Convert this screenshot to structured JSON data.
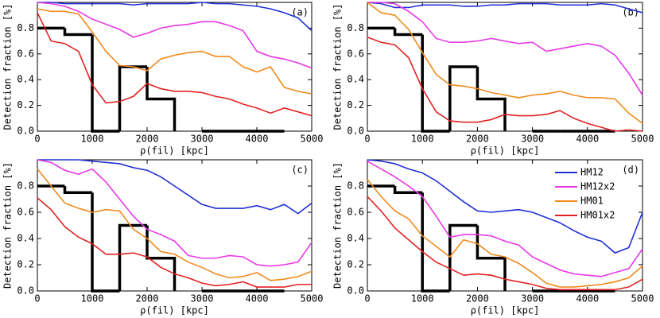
{
  "chart_data": [
    {
      "type": "line",
      "panel_label": "(a)",
      "xlabel": "ρ(fil) [kpc]",
      "ylabel": "Detection fraction [%]",
      "xlim": [
        0,
        5000
      ],
      "ylim": [
        0,
        1
      ],
      "xticks": [
        0,
        1000,
        2000,
        3000,
        4000,
        5000
      ],
      "yticks": [
        {
          "value": 0,
          "label": "0.0"
        },
        0.2,
        0.4,
        0.6,
        0.8
      ],
      "legend": false,
      "x": [
        0,
        250,
        500,
        750,
        1000,
        1250,
        1500,
        1750,
        2000,
        2250,
        2500,
        2750,
        3000,
        3250,
        3500,
        3750,
        4000,
        4250,
        4500,
        4750,
        5000
      ],
      "series": [
        {
          "name": "HM12",
          "color": "#1f2fd6",
          "values": [
            1,
            1,
            0.99,
            0.99,
            0.99,
            0.99,
            0.99,
            0.98,
            0.99,
            0.99,
            0.99,
            0.99,
            1,
            0.99,
            0.99,
            0.98,
            0.97,
            0.95,
            0.92,
            0.88,
            0.78
          ]
        },
        {
          "name": "HM12x2",
          "color": "#e838e8",
          "values": [
            1,
            0.99,
            0.97,
            0.93,
            0.87,
            0.83,
            0.79,
            0.73,
            0.76,
            0.8,
            0.82,
            0.83,
            0.85,
            0.85,
            0.82,
            0.78,
            0.62,
            0.58,
            0.56,
            0.53,
            0.49
          ]
        },
        {
          "name": "HM01",
          "color": "#f08a1c",
          "values": [
            0.95,
            0.93,
            0.93,
            0.91,
            0.77,
            0.62,
            0.51,
            0.5,
            0.47,
            0.56,
            0.59,
            0.61,
            0.62,
            0.58,
            0.58,
            0.5,
            0.46,
            0.5,
            0.34,
            0.31,
            0.29
          ]
        },
        {
          "name": "HM01x2",
          "color": "#e32222",
          "values": [
            0.92,
            0.7,
            0.68,
            0.62,
            0.36,
            0.22,
            0.23,
            0.27,
            0.37,
            0.33,
            0.31,
            0.31,
            0.3,
            0.27,
            0.25,
            0.21,
            0.18,
            0.14,
            0.18,
            0.15,
            0.12
          ]
        }
      ],
      "steps": {
        "color": "#000000",
        "bins": [
          0,
          500,
          1000,
          1500,
          2000,
          2500,
          3000,
          3500,
          4000,
          4500
        ],
        "values": [
          0.8,
          0.75,
          0,
          0.5,
          0.25,
          null,
          0,
          0,
          0
        ]
      }
    },
    {
      "type": "line",
      "panel_label": "(b)",
      "xlabel": "ρ(fil) [kpc]",
      "ylabel": "Detection fraction [%]",
      "xlim": [
        0,
        5000
      ],
      "ylim": [
        0,
        1
      ],
      "xticks": [
        0,
        1000,
        2000,
        3000,
        4000,
        5000
      ],
      "yticks": [
        {
          "value": 0,
          "label": "0.0"
        },
        0.2,
        0.4,
        0.6,
        0.8
      ],
      "legend": false,
      "x": [
        0,
        250,
        500,
        750,
        1000,
        1250,
        1500,
        1750,
        2000,
        2250,
        2500,
        2750,
        3000,
        3250,
        3500,
        3750,
        4000,
        4250,
        4500,
        4750,
        5000
      ],
      "series": [
        {
          "name": "HM12",
          "color": "#1f2fd6",
          "values": [
            1,
            0.99,
            0.96,
            0.96,
            0.98,
            0.98,
            0.98,
            0.97,
            0.97,
            0.98,
            0.98,
            0.99,
            0.99,
            0.99,
            0.98,
            0.98,
            0.98,
            0.99,
            0.98,
            0.95,
            0.92
          ]
        },
        {
          "name": "HM12x2",
          "color": "#e838e8",
          "values": [
            1,
            1,
            0.99,
            0.93,
            0.85,
            0.72,
            0.69,
            0.69,
            0.7,
            0.72,
            0.7,
            0.68,
            0.69,
            0.62,
            0.64,
            0.66,
            0.68,
            0.66,
            0.59,
            0.45,
            0.28
          ]
        },
        {
          "name": "HM01",
          "color": "#f08a1c",
          "values": [
            1,
            0.92,
            0.9,
            0.79,
            0.61,
            0.44,
            0.36,
            0.35,
            0.33,
            0.3,
            0.28,
            0.26,
            0.28,
            0.29,
            0.31,
            0.28,
            0.26,
            0.26,
            0.25,
            0.14,
            0.06
          ]
        },
        {
          "name": "HM01x2",
          "color": "#e32222",
          "values": [
            0.73,
            0.69,
            0.67,
            0.57,
            0.33,
            0.15,
            0.08,
            0.07,
            0.07,
            0.09,
            0.13,
            0.12,
            0.12,
            0.13,
            0.16,
            0.1,
            0.06,
            0.03,
            0,
            0.01,
            0
          ]
        }
      ],
      "steps": {
        "color": "#000000",
        "bins": [
          0,
          500,
          1000,
          1500,
          2000,
          2500,
          3000,
          3500,
          4000,
          4500
        ],
        "values": [
          0.8,
          0.75,
          0,
          0.5,
          0.25,
          null,
          0,
          0,
          0
        ]
      }
    },
    {
      "type": "line",
      "panel_label": "(c)",
      "xlabel": "ρ(fil) [kpc]",
      "ylabel": "Detection fraction [%]",
      "xlim": [
        0,
        5000
      ],
      "ylim": [
        0,
        1
      ],
      "xticks": [
        0,
        1000,
        2000,
        3000,
        4000,
        5000
      ],
      "yticks": [
        {
          "value": 0,
          "label": "0.0"
        },
        0.2,
        0.4,
        0.6,
        0.8
      ],
      "legend": false,
      "x": [
        0,
        250,
        500,
        750,
        1000,
        1250,
        1500,
        1750,
        2000,
        2250,
        2500,
        2750,
        3000,
        3250,
        3500,
        3750,
        4000,
        4250,
        4500,
        4750,
        5000
      ],
      "series": [
        {
          "name": "HM12",
          "color": "#1f2fd6",
          "values": [
            1,
            1,
            1,
            1,
            0.99,
            0.98,
            0.97,
            0.94,
            0.92,
            0.87,
            0.8,
            0.73,
            0.66,
            0.63,
            0.63,
            0.63,
            0.65,
            0.62,
            0.66,
            0.59,
            0.67
          ]
        },
        {
          "name": "HM12x2",
          "color": "#e838e8",
          "values": [
            1,
            0.98,
            0.92,
            0.89,
            0.93,
            0.83,
            0.7,
            0.57,
            0.47,
            0.43,
            0.38,
            0.27,
            0.25,
            0.25,
            0.27,
            0.26,
            0.2,
            0.19,
            0.2,
            0.22,
            0.37
          ]
        },
        {
          "name": "HM01",
          "color": "#f08a1c",
          "values": [
            0.93,
            0.8,
            0.67,
            0.63,
            0.6,
            0.62,
            0.61,
            0.47,
            0.4,
            0.3,
            0.28,
            0.22,
            0.18,
            0.13,
            0.1,
            0.11,
            0.14,
            0.08,
            0.09,
            0.11,
            0.15
          ]
        },
        {
          "name": "HM01x2",
          "color": "#e32222",
          "values": [
            0.71,
            0.62,
            0.49,
            0.41,
            0.36,
            0.28,
            0.28,
            0.29,
            0.26,
            0.18,
            0.13,
            0.1,
            0.06,
            0.04,
            0.05,
            0.07,
            0.03,
            0.03,
            0.03,
            0.05,
            0.05
          ]
        }
      ],
      "steps": {
        "color": "#000000",
        "bins": [
          0,
          500,
          1000,
          1500,
          2000,
          2500,
          3000,
          3500,
          4000,
          4500
        ],
        "values": [
          0.8,
          0.75,
          0,
          0.5,
          0.25,
          null,
          0,
          0,
          0
        ]
      }
    },
    {
      "type": "line",
      "panel_label": "(d)",
      "xlabel": "ρ(fil) [kpc]",
      "ylabel": "Detection fraction [%]",
      "xlim": [
        0,
        5000
      ],
      "ylim": [
        0,
        1
      ],
      "xticks": [
        0,
        1000,
        2000,
        3000,
        4000,
        5000
      ],
      "yticks": [
        {
          "value": 0,
          "label": "0.0"
        },
        0.2,
        0.4,
        0.6,
        0.8
      ],
      "legend": true,
      "x": [
        0,
        250,
        500,
        750,
        1000,
        1250,
        1500,
        1750,
        2000,
        2250,
        2500,
        2750,
        3000,
        3250,
        3500,
        3750,
        4000,
        4250,
        4500,
        4750,
        5000
      ],
      "series": [
        {
          "name": "HM12",
          "color": "#1f2fd6",
          "values": [
            1,
            0.99,
            0.97,
            0.93,
            0.9,
            0.84,
            0.76,
            0.68,
            0.61,
            0.6,
            0.61,
            0.62,
            0.6,
            0.56,
            0.52,
            0.46,
            0.41,
            0.38,
            0.29,
            0.33,
            0.6
          ]
        },
        {
          "name": "HM12x2",
          "color": "#e838e8",
          "values": [
            0.99,
            0.93,
            0.87,
            0.8,
            0.72,
            0.57,
            0.41,
            0.43,
            0.43,
            0.42,
            0.38,
            0.35,
            0.26,
            0.21,
            0.16,
            0.13,
            0.12,
            0.11,
            0.14,
            0.17,
            0.32
          ]
        },
        {
          "name": "HM01",
          "color": "#f08a1c",
          "values": [
            0.85,
            0.72,
            0.61,
            0.55,
            0.42,
            0.34,
            0.26,
            0.39,
            0.36,
            0.28,
            0.26,
            0.21,
            0.14,
            0.06,
            0.03,
            0.03,
            0.04,
            0.05,
            0.07,
            0.1,
            0.19
          ]
        },
        {
          "name": "HM01x2",
          "color": "#e32222",
          "values": [
            0.72,
            0.61,
            0.48,
            0.39,
            0.3,
            0.22,
            0.17,
            0.12,
            0.13,
            0.12,
            0.09,
            0.07,
            0.05,
            0.02,
            0.01,
            0.01,
            0.01,
            0.01,
            0.01,
            0.03,
            0.09
          ]
        }
      ],
      "steps": {
        "color": "#000000",
        "bins": [
          0,
          500,
          1000,
          1500,
          2000,
          2500,
          3000,
          3500,
          4000,
          4500
        ],
        "values": [
          0.8,
          0.75,
          0,
          0.5,
          0.25,
          null,
          0,
          0,
          0
        ]
      }
    }
  ]
}
